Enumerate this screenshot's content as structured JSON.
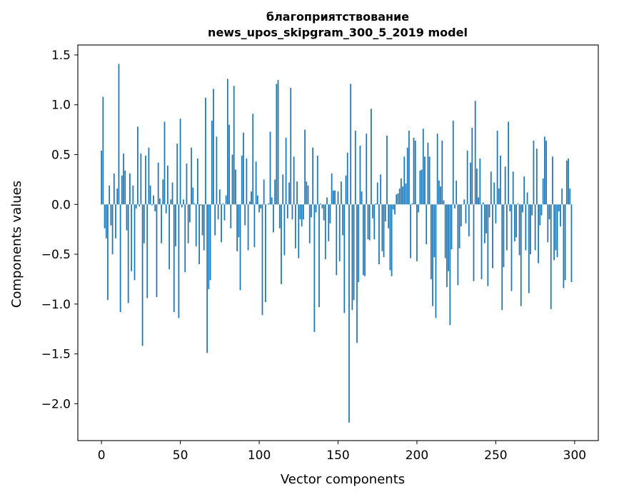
{
  "chart_data": {
    "type": "bar",
    "title": [
      "благоприятствование",
      "news_upos_skipgram_300_5_2019 model"
    ],
    "xlabel": "Vector components",
    "ylabel": "Components values",
    "xlim": [
      -15,
      315
    ],
    "ylim": [
      -2.37,
      1.6
    ],
    "xticks": [
      0,
      50,
      100,
      150,
      200,
      250,
      300
    ],
    "xtick_labels": [
      "0",
      "50",
      "100",
      "150",
      "200",
      "250",
      "300"
    ],
    "yticks": [
      1.5,
      1.0,
      0.5,
      0.0,
      -0.5,
      -1.0,
      -1.5,
      -2.0
    ],
    "ytick_labels": [
      "1.5",
      "1.0",
      "0.5",
      "0.0",
      "−0.5",
      "−1.0",
      "−1.5",
      "−2.0"
    ],
    "grid": false,
    "color": "#1f77b4",
    "values": [
      0.54,
      1.08,
      -0.24,
      -0.34,
      -0.96,
      0.19,
      -0.21,
      -0.5,
      0.31,
      -0.34,
      0.16,
      1.41,
      -1.08,
      0.29,
      0.51,
      0.34,
      -0.26,
      -0.99,
      0.31,
      -0.67,
      0.19,
      -0.76,
      -0.04,
      0.78,
      -0.02,
      0.51,
      -1.42,
      -0.39,
      0.49,
      -0.94,
      0.57,
      0.19,
      -0.01,
      0.09,
      -0.07,
      -0.93,
      0.42,
      0.06,
      -0.39,
      0.25,
      0.83,
      -0.09,
      0.39,
      -0.65,
      0.05,
      0.22,
      -1.08,
      -0.42,
      0.61,
      -1.14,
      0.86,
      -0.03,
      0.05,
      -0.68,
      0.41,
      -0.39,
      -0.18,
      0.57,
      0.17,
      0.01,
      -0.42,
      0.46,
      -0.6,
      -0.01,
      -0.31,
      -0.46,
      1.07,
      -1.49,
      -0.85,
      -0.76,
      0.84,
      1.16,
      -0.31,
      0.68,
      -0.15,
      0.15,
      -0.38,
      0.01,
      -0.16,
      0.09,
      1.26,
      0.8,
      -0.24,
      0.5,
      1.19,
      0.35,
      -0.47,
      -0.33,
      -0.86,
      0.49,
      0.72,
      -0.21,
      0.46,
      -0.46,
      0.03,
      0.13,
      0.91,
      -0.43,
      0.43,
      0.09,
      -0.08,
      -0.04,
      -1.11,
      0.25,
      -0.98,
      0.0,
      0.01,
      0.73,
      0.07,
      -0.28,
      0.25,
      1.21,
      1.25,
      -0.24,
      -0.8,
      0.3,
      -0.51,
      0.67,
      -0.14,
      0.22,
      1.17,
      -0.15,
      0.48,
      -0.44,
      0.23,
      -0.54,
      -0.15,
      -0.22,
      -0.15,
      0.75,
      0.23,
      0.19,
      -0.39,
      -0.13,
      0.57,
      -1.28,
      -0.08,
      0.49,
      -1.03,
      0.01,
      -0.04,
      -0.16,
      -0.55,
      0.07,
      -0.37,
      -0.19,
      0.31,
      0.14,
      0.14,
      -0.71,
      0.13,
      -0.57,
      0.23,
      -0.31,
      -1.09,
      0.29,
      0.52,
      -2.19,
      1.21,
      -1.06,
      -0.96,
      0.74,
      -1.39,
      -0.78,
      0.59,
      0.13,
      -0.71,
      -0.72,
      0.71,
      -0.35,
      -0.36,
      0.96,
      -0.14,
      -0.35,
      0.01,
      0.22,
      -0.6,
      0.3,
      -0.47,
      -0.53,
      -0.17,
      0.69,
      -0.24,
      -0.66,
      -0.72,
      -0.05,
      -0.1,
      0.1,
      0.11,
      0.16,
      0.26,
      0.18,
      0.48,
      0.21,
      0.57,
      0.74,
      -0.54,
      0.01,
      0.67,
      0.64,
      -0.57,
      -0.08,
      0.34,
      0.35,
      0.76,
      0.48,
      -0.4,
      0.62,
      0.48,
      -0.75,
      -1.02,
      -0.53,
      -1.14,
      0.71,
      0.24,
      0.18,
      0.64,
      0.04,
      -0.54,
      -0.83,
      -0.67,
      -1.21,
      -0.45,
      0.84,
      -0.04,
      0.24,
      -0.81,
      -0.44,
      -0.22,
      0.0,
      0.05,
      -0.19,
      0.54,
      -0.32,
      0.42,
      0.77,
      -0.77,
      1.04,
      0.36,
      0.07,
      0.46,
      -0.75,
      0.02,
      -0.39,
      -0.29,
      -0.82,
      -0.13,
      0.33,
      -0.64,
      0.22,
      -0.19,
      0.74,
      0.16,
      0.49,
      -1.06,
      -0.63,
      0.38,
      -0.46,
      0.83,
      -0.07,
      -0.87,
      0.33,
      -0.37,
      -0.33,
      0.01,
      -0.51,
      -1.02,
      -0.08,
      0.28,
      -0.46,
      0.12,
      -0.89,
      -0.5,
      -0.11,
      0.64,
      -0.46,
      0.56,
      -0.59,
      -0.21,
      -0.11,
      0.26,
      0.68,
      0.64,
      -0.38,
      -0.15,
      -1.05,
      0.48,
      -0.56,
      -0.46,
      -0.53,
      -0.07,
      -0.22,
      0.16,
      -0.84,
      -0.76,
      0.44,
      0.46,
      0.16,
      -0.78
    ]
  }
}
